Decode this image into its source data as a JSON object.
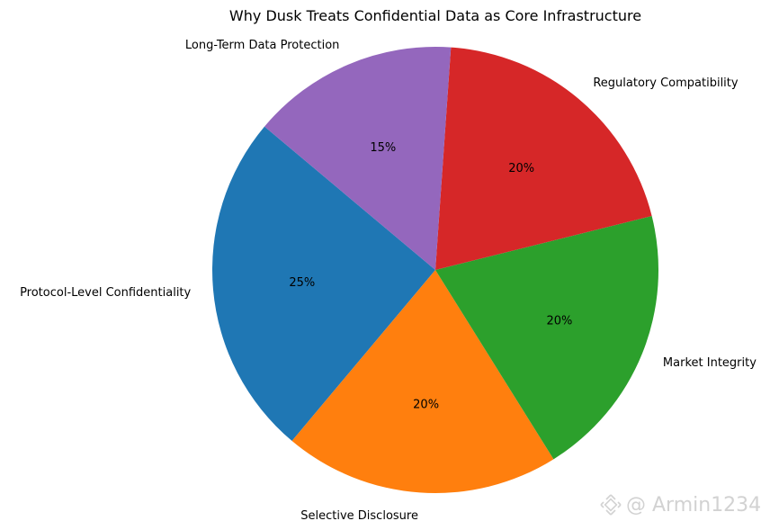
{
  "chart_data": {
    "type": "pie",
    "title": "Why Dusk Treats Confidential Data as Core Infrastructure",
    "categories": [
      "Protocol-Level Confidentiality",
      "Selective Disclosure",
      "Market Integrity",
      "Regulatory Compatibility",
      "Long-Term Data Protection"
    ],
    "values": [
      25,
      20,
      20,
      20,
      15
    ],
    "percent_labels": [
      "25%",
      "20%",
      "20%",
      "20%",
      "15%"
    ],
    "colors": [
      "#1f77b4",
      "#ff7f0e",
      "#2ca02c",
      "#d62728",
      "#9467bd"
    ],
    "start_angle_deg": 140,
    "direction": "counterclockwise"
  },
  "watermark": {
    "text": "@ Armin1234",
    "icon": "binance-logo-icon"
  }
}
